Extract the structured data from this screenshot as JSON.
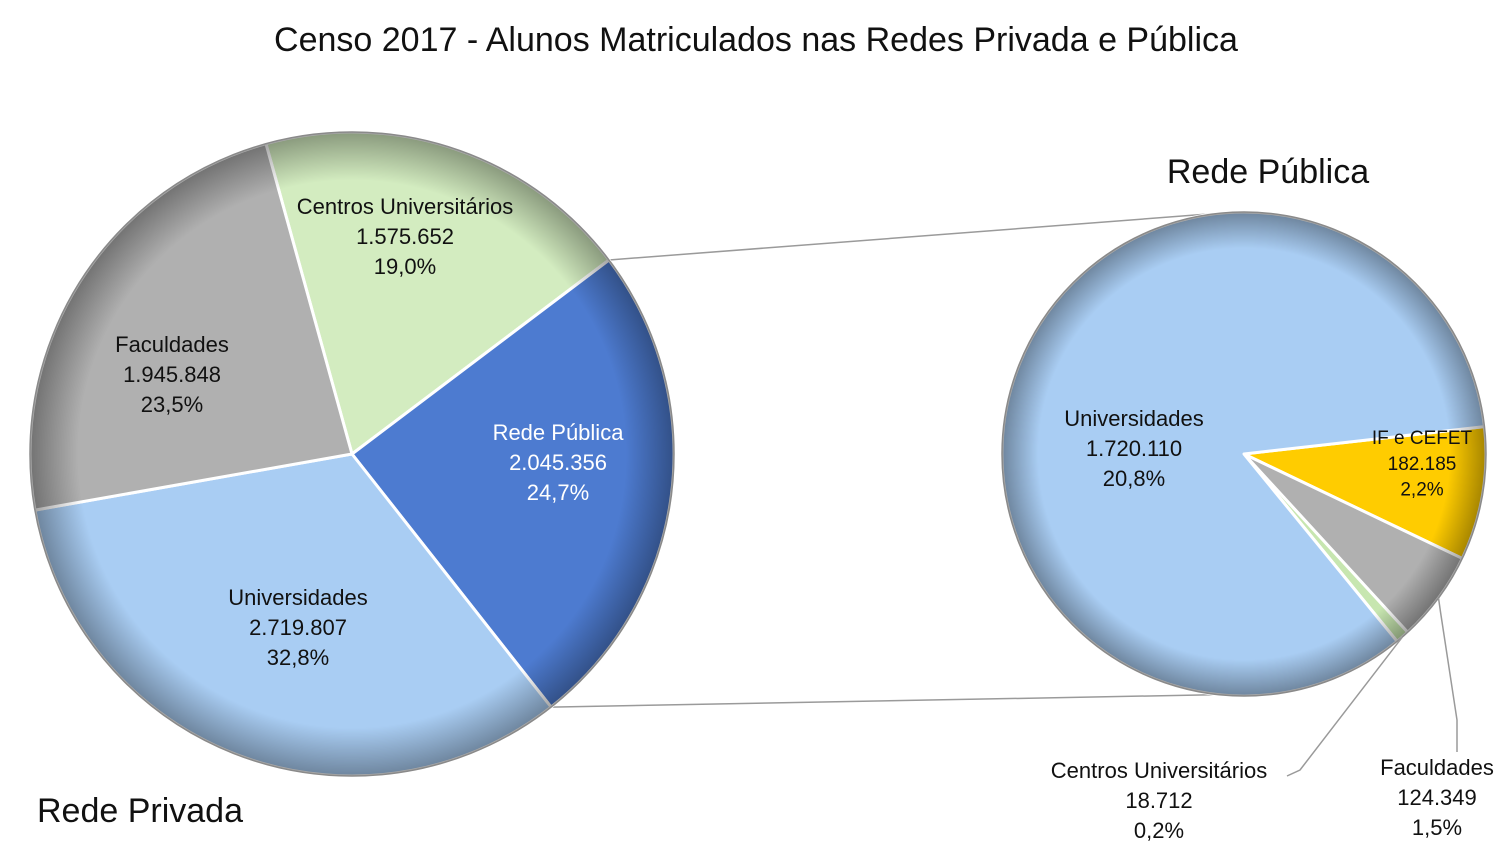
{
  "chart_data": {
    "type": "pie",
    "title": "Censo 2017 - Alunos Matriculados nas Redes Privada e Pública",
    "pies": [
      {
        "name": "Rede Privada",
        "slices": [
          {
            "label": "Centros Universitários",
            "value_text": "1.575.652",
            "value": 1575652,
            "pct_text": "19,0%",
            "pct": 19.0,
            "color": "#d3ecc0",
            "text_color": "#111111"
          },
          {
            "label": "Rede Pública",
            "value_text": "2.045.356",
            "value": 2045356,
            "pct_text": "24,7%",
            "pct": 24.7,
            "color": "#4d7bd0",
            "text_color": "#ffffff"
          },
          {
            "label": "Universidades",
            "value_text": "2.719.807",
            "value": 2719807,
            "pct_text": "32,8%",
            "pct": 32.8,
            "color": "#a9cdf3",
            "text_color": "#111111"
          },
          {
            "label": "Faculdades",
            "value_text": "1.945.848",
            "value": 1945848,
            "pct_text": "23,5%",
            "pct": 23.5,
            "color": "#b0b0b0",
            "text_color": "#111111"
          }
        ]
      },
      {
        "name": "Rede Pública",
        "slices": [
          {
            "label": "IF e CEFET",
            "value_text": "182.185",
            "value": 182185,
            "pct_text": "2,2%",
            "pct": 2.2,
            "color": "#ffcc00",
            "text_color": "#111111"
          },
          {
            "label": "Faculdades",
            "value_text": "124.349",
            "value": 124349,
            "pct_text": "1,5%",
            "pct": 1.5,
            "color": "#b0b0b0",
            "text_color": "#111111"
          },
          {
            "label": "Centros Universitários",
            "value_text": "18.712",
            "value": 18712,
            "pct_text": "0,2%",
            "pct": 0.2,
            "color": "#c7e6b0",
            "text_color": "#111111"
          },
          {
            "label": "Universidades",
            "value_text": "1.720.110",
            "value": 1720110,
            "pct_text": "20,8%",
            "pct": 20.8,
            "color": "#a9cdf3",
            "text_color": "#111111"
          }
        ]
      }
    ]
  }
}
